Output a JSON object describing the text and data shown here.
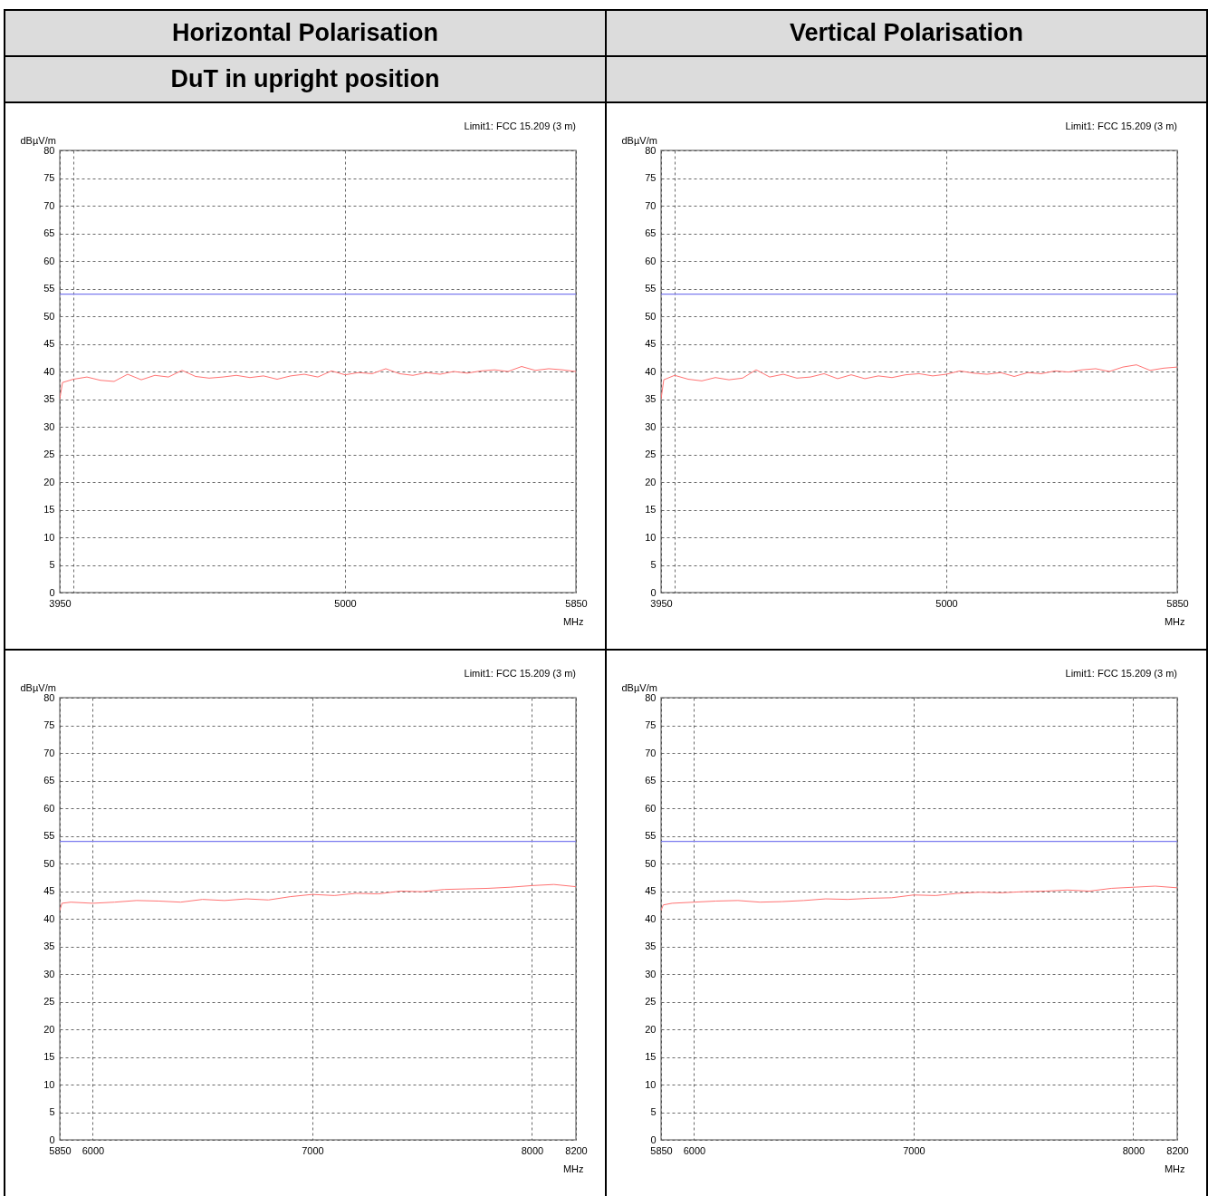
{
  "chart_data": [
    {
      "type": "line",
      "title": "Horizontal Polarisation",
      "subtitle": "DuT in upright position",
      "xlabel": "MHz",
      "ylabel": "dBµV/m",
      "annotations": [
        "Limit1: FCC 15.209 (3 m)"
      ],
      "xlim": [
        3950,
        5850
      ],
      "xticks": [
        3950,
        {
          "value": 4000,
          "label": null
        },
        5000,
        5850
      ],
      "ylim": [
        0,
        80
      ],
      "yticks": [
        0,
        5,
        10,
        15,
        20,
        25,
        30,
        35,
        40,
        45,
        50,
        55,
        60,
        65,
        70,
        75,
        80
      ],
      "grid": true,
      "ref_lines": [
        {
          "axis": "y",
          "value": 54,
          "color": "#7b7bef"
        }
      ],
      "series": [
        {
          "color": "#ff7373",
          "x": [
            3950,
            3960,
            4000,
            4050,
            4100,
            4150,
            4200,
            4250,
            4300,
            4350,
            4400,
            4450,
            4500,
            4550,
            4600,
            4650,
            4700,
            4750,
            4800,
            4850,
            4900,
            4950,
            5000,
            5050,
            5100,
            5150,
            5200,
            5250,
            5300,
            5350,
            5400,
            5450,
            5500,
            5550,
            5600,
            5650,
            5700,
            5750,
            5800,
            5850
          ],
          "values": [
            35,
            38,
            38.6,
            39.0,
            38.4,
            38.2,
            39.5,
            38.5,
            39.3,
            39.0,
            40.2,
            39.1,
            38.8,
            39.0,
            39.3,
            38.9,
            39.2,
            38.6,
            39.2,
            39.5,
            39.0,
            40.1,
            39.4,
            39.8,
            39.6,
            40.5,
            39.6,
            39.3,
            39.8,
            39.5,
            40.0,
            39.7,
            40.1,
            40.3,
            40.0,
            40.9,
            40.2,
            40.5,
            40.3,
            40.0
          ]
        }
      ]
    },
    {
      "type": "line",
      "title": "Vertical Polarisation",
      "xlabel": "MHz",
      "ylabel": "dBµV/m",
      "annotations": [
        "Limit1: FCC 15.209 (3 m)"
      ],
      "xlim": [
        3950,
        5850
      ],
      "xticks": [
        3950,
        {
          "value": 4000,
          "label": null
        },
        5000,
        5850
      ],
      "ylim": [
        0,
        80
      ],
      "yticks": [
        0,
        5,
        10,
        15,
        20,
        25,
        30,
        35,
        40,
        45,
        50,
        55,
        60,
        65,
        70,
        75,
        80
      ],
      "grid": true,
      "ref_lines": [
        {
          "axis": "y",
          "value": 54,
          "color": "#7b7bef"
        }
      ],
      "series": [
        {
          "color": "#ff7373",
          "x": [
            3950,
            3960,
            4000,
            4050,
            4100,
            4150,
            4200,
            4250,
            4300,
            4350,
            4400,
            4450,
            4500,
            4550,
            4600,
            4650,
            4700,
            4750,
            4800,
            4850,
            4900,
            4950,
            5000,
            5050,
            5100,
            5150,
            5200,
            5250,
            5300,
            5350,
            5400,
            5450,
            5500,
            5550,
            5600,
            5650,
            5700,
            5750,
            5800,
            5850
          ],
          "values": [
            35,
            38.5,
            39.3,
            38.6,
            38.3,
            38.9,
            38.5,
            38.8,
            40.3,
            39.0,
            39.5,
            38.8,
            39.0,
            39.6,
            38.7,
            39.4,
            38.7,
            39.2,
            38.9,
            39.4,
            39.6,
            39.2,
            39.5,
            40.1,
            39.7,
            39.5,
            39.8,
            39.1,
            39.8,
            39.6,
            40.1,
            39.9,
            40.3,
            40.5,
            40.0,
            40.8,
            41.2,
            40.2,
            40.6,
            40.8
          ]
        }
      ]
    },
    {
      "type": "line",
      "xlabel": "MHz",
      "ylabel": "dBµV/m",
      "annotations": [
        "Limit1: FCC 15.209 (3 m)"
      ],
      "xlim": [
        5850,
        8200
      ],
      "xticks": [
        5850,
        6000,
        7000,
        8000,
        8200
      ],
      "ylim": [
        0,
        80
      ],
      "yticks": [
        0,
        5,
        10,
        15,
        20,
        25,
        30,
        35,
        40,
        45,
        50,
        55,
        60,
        65,
        70,
        75,
        80
      ],
      "grid": true,
      "ref_lines": [
        {
          "axis": "y",
          "value": 54,
          "color": "#7b7bef"
        }
      ],
      "series": [
        {
          "color": "#ff7373",
          "x": [
            5850,
            5860,
            5900,
            6000,
            6100,
            6200,
            6300,
            6400,
            6500,
            6600,
            6700,
            6800,
            6900,
            7000,
            7100,
            7200,
            7300,
            7400,
            7500,
            7600,
            7700,
            7800,
            7900,
            8000,
            8100,
            8200
          ],
          "values": [
            41.5,
            42.8,
            43.0,
            42.8,
            43.0,
            43.3,
            43.2,
            43.0,
            43.5,
            43.3,
            43.6,
            43.4,
            44.0,
            44.4,
            44.2,
            44.6,
            44.5,
            45.0,
            44.9,
            45.3,
            45.4,
            45.5,
            45.7,
            46.0,
            46.2,
            45.8
          ]
        }
      ]
    },
    {
      "type": "line",
      "xlabel": "MHz",
      "ylabel": "dBµV/m",
      "annotations": [
        "Limit1: FCC 15.209 (3 m)"
      ],
      "xlim": [
        5850,
        8200
      ],
      "xticks": [
        5850,
        6000,
        7000,
        8000,
        8200
      ],
      "ylim": [
        0,
        80
      ],
      "yticks": [
        0,
        5,
        10,
        15,
        20,
        25,
        30,
        35,
        40,
        45,
        50,
        55,
        60,
        65,
        70,
        75,
        80
      ],
      "grid": true,
      "ref_lines": [
        {
          "axis": "y",
          "value": 54,
          "color": "#7b7bef"
        }
      ],
      "series": [
        {
          "color": "#ff7373",
          "x": [
            5850,
            5860,
            5900,
            6000,
            6100,
            6200,
            6300,
            6400,
            6500,
            6600,
            6700,
            6800,
            6900,
            7000,
            7100,
            7200,
            7300,
            7400,
            7500,
            7600,
            7700,
            7800,
            7900,
            8000,
            8100,
            8200
          ],
          "values": [
            41.5,
            42.5,
            42.8,
            43.0,
            43.2,
            43.3,
            43.0,
            43.1,
            43.3,
            43.6,
            43.5,
            43.7,
            43.8,
            44.3,
            44.2,
            44.6,
            44.8,
            44.7,
            44.9,
            45.0,
            45.2,
            45.0,
            45.5,
            45.7,
            45.9,
            45.6
          ]
        }
      ]
    }
  ]
}
